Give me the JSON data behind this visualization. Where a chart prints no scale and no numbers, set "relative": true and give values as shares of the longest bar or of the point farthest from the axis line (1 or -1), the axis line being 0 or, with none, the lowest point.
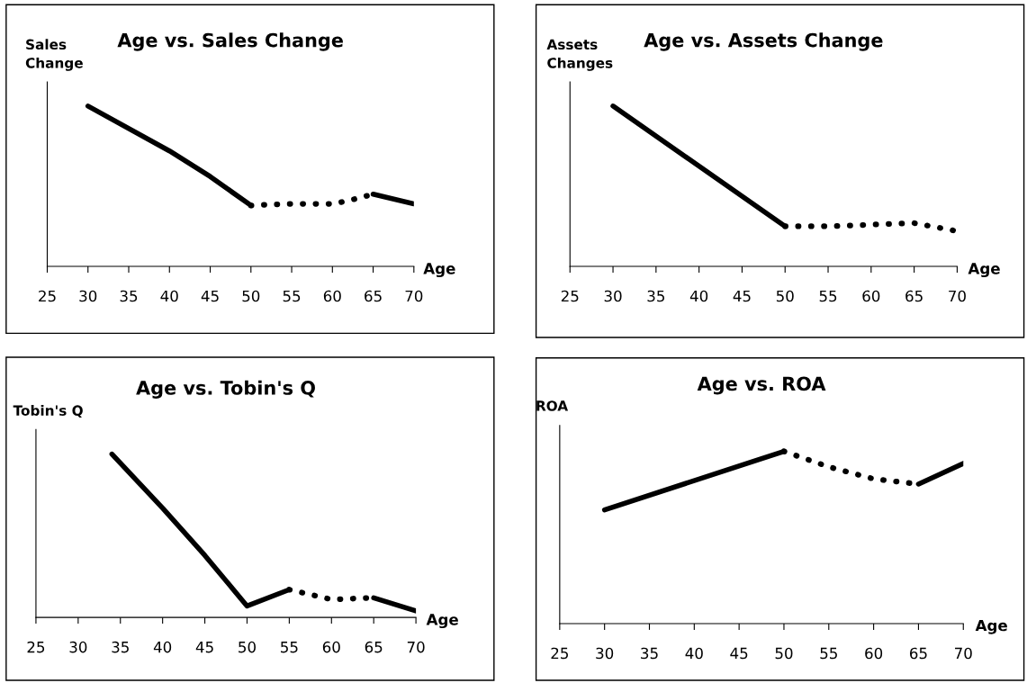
{
  "chart_data": [
    {
      "type": "line",
      "title": "Age vs. Sales Change",
      "xlabel": "Age",
      "ylabel": "Sales\nChange",
      "relative": true,
      "xlim": [
        25,
        70
      ],
      "xticks": [
        25,
        30,
        35,
        40,
        45,
        50,
        55,
        60,
        65,
        70
      ],
      "tick_labels": "x",
      "series": [
        {
          "color": "#000000",
          "line_style": "solid",
          "x": [
            30,
            40,
            45,
            50
          ],
          "values": [
            1,
            0.72,
            0.56,
            0.38
          ]
        },
        {
          "color": "#000000",
          "line_style": "dotted",
          "x": [
            50,
            55,
            60,
            62,
            65
          ],
          "values": [
            0.38,
            0.39,
            0.39,
            0.41,
            0.45
          ]
        },
        {
          "color": "#000000",
          "line_style": "solid",
          "x": [
            65,
            70
          ],
          "values": [
            0.45,
            0.39
          ]
        }
      ]
    },
    {
      "type": "line",
      "title": "Age vs. Assets Change",
      "xlabel": "Age",
      "ylabel": "Assets\nChanges",
      "relative": true,
      "xlim": [
        25,
        70
      ],
      "xticks": [
        25,
        30,
        35,
        40,
        45,
        50,
        55,
        60,
        65,
        70
      ],
      "tick_labels": "x",
      "series": [
        {
          "color": "#000000",
          "line_style": "solid",
          "x": [
            30,
            50
          ],
          "values": [
            1,
            0.25
          ]
        },
        {
          "color": "#000000",
          "line_style": "dotted",
          "x": [
            50,
            55,
            60,
            65,
            70
          ],
          "values": [
            0.25,
            0.25,
            0.26,
            0.27,
            0.22
          ]
        }
      ]
    },
    {
      "type": "line",
      "title": "Age vs. Tobin's Q",
      "xlabel": "Age",
      "ylabel": "Tobin's Q",
      "relative": true,
      "xlim": [
        25,
        70
      ],
      "xticks": [
        25,
        30,
        35,
        40,
        45,
        50,
        55,
        60,
        65,
        70
      ],
      "tick_labels": "x",
      "series": [
        {
          "color": "#000000",
          "line_style": "solid",
          "x": [
            34,
            40,
            45,
            50,
            55
          ],
          "values": [
            1,
            0.67,
            0.38,
            0.07,
            0.17
          ]
        },
        {
          "color": "#000000",
          "line_style": "dotted",
          "x": [
            55,
            60,
            65
          ],
          "values": [
            0.17,
            0.11,
            0.12
          ]
        },
        {
          "color": "#000000",
          "line_style": "solid",
          "x": [
            65,
            70
          ],
          "values": [
            0.12,
            0.04
          ]
        }
      ]
    },
    {
      "type": "line",
      "title": "Age vs. ROA",
      "xlabel": "Age",
      "ylabel": "ROA",
      "relative": true,
      "xlim": [
        25,
        70
      ],
      "xticks": [
        25,
        30,
        35,
        40,
        45,
        50,
        55,
        60,
        65,
        70
      ],
      "tick_labels": "x",
      "series": [
        {
          "color": "#000000",
          "line_style": "solid",
          "x": [
            30,
            50
          ],
          "values": [
            0.66,
            1
          ]
        },
        {
          "color": "#000000",
          "line_style": "dotted",
          "x": [
            50,
            55,
            60,
            65
          ],
          "values": [
            1,
            0.91,
            0.84,
            0.81
          ]
        },
        {
          "color": "#000000",
          "line_style": "solid",
          "x": [
            65,
            70
          ],
          "values": [
            0.81,
            0.93
          ]
        }
      ]
    }
  ]
}
